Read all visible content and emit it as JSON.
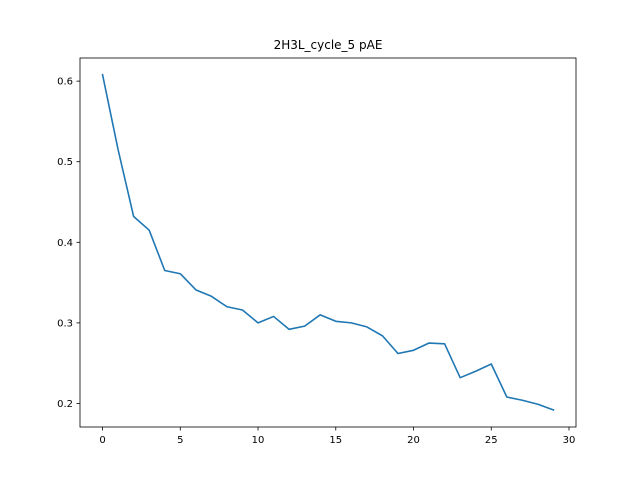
{
  "chart_data": {
    "type": "line",
    "title": "2H3L_cycle_5 pAE",
    "xlabel": "",
    "ylabel": "",
    "xlim": [
      -1.45,
      30.45
    ],
    "ylim": [
      0.1708,
      0.6287
    ],
    "xticks": [
      0,
      5,
      10,
      15,
      20,
      25,
      30
    ],
    "yticks": [
      0.2,
      0.3,
      0.4,
      0.5,
      0.6
    ],
    "grid": false,
    "legend": "none",
    "series": [
      {
        "color": "#1f77b4",
        "x": [
          0,
          1,
          2,
          3,
          4,
          5,
          6,
          7,
          8,
          9,
          10,
          11,
          12,
          13,
          14,
          15,
          16,
          17,
          18,
          19,
          20,
          21,
          22,
          23,
          24,
          25,
          26,
          27,
          28,
          29
        ],
        "values": [
          0.608,
          0.515,
          0.432,
          0.415,
          0.365,
          0.361,
          0.341,
          0.333,
          0.32,
          0.316,
          0.3,
          0.308,
          0.292,
          0.296,
          0.31,
          0.302,
          0.3,
          0.295,
          0.284,
          0.262,
          0.266,
          0.275,
          0.274,
          0.232,
          0.24,
          0.249,
          0.208,
          0.204,
          0.199,
          0.192
        ]
      }
    ]
  }
}
